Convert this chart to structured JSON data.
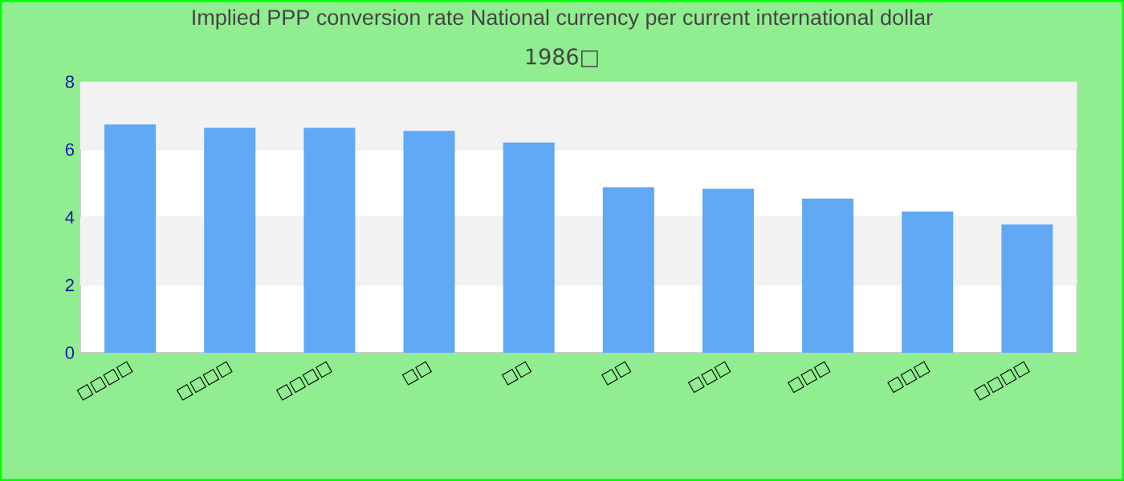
{
  "chart_data": {
    "type": "bar",
    "title": "Implied PPP conversion rate  National currency per current international dollar",
    "subtitle": "1986□",
    "categories": [
      "□□□□",
      "□□□□",
      "□□□□",
      "□□",
      "□□",
      "□□",
      "□□□",
      "□□□",
      "□□□",
      "□□□□"
    ],
    "values": [
      6.74,
      6.64,
      6.64,
      6.55,
      6.21,
      4.89,
      4.84,
      4.55,
      4.17,
      3.79
    ],
    "color": "#61a8f5",
    "ylim": [
      0,
      8
    ],
    "yticks": [
      0,
      2,
      4,
      6,
      8
    ],
    "grid": "y"
  }
}
